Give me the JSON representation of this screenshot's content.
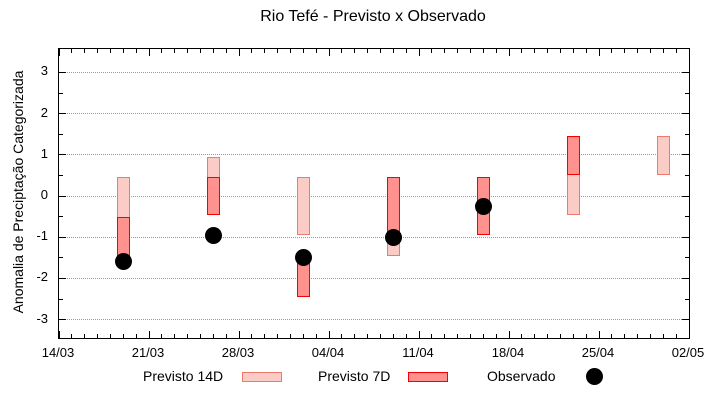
{
  "title": "Rio Tefé - Previsto x Observado",
  "y_axis": {
    "label": "Anomalia de Preciptação Categorizada",
    "ticks": [
      3,
      2,
      1,
      0,
      -1,
      -2,
      -3
    ],
    "range": [
      -3.5,
      3.5
    ]
  },
  "x_axis": {
    "tick_labels": [
      "14/03",
      "21/03",
      "28/03",
      "04/04",
      "11/04",
      "18/04",
      "25/04",
      "02/05"
    ]
  },
  "legend": {
    "items": [
      {
        "label": "Previsto 14D",
        "swatch": "range-bar-light"
      },
      {
        "label": "Previsto 7D",
        "swatch": "range-bar-dark"
      },
      {
        "label": "Observado",
        "swatch": "black-dot"
      }
    ]
  },
  "colors": {
    "forecast14_fill": "#fbcbc6",
    "forecast14_border": "#f0796d",
    "forecast7_fill": "#ff918e",
    "forecast7_border": "#f80000",
    "observed": "#000000",
    "gridline": "#999999",
    "axis": "#000000"
  },
  "chart_data": {
    "type": "bar",
    "subtype": "range-bars-with-scatter-overlay",
    "title": "Rio Tefé - Previsto x Observado",
    "xlabel": "",
    "ylabel": "Anomalia de Preciptação Categorizada",
    "ylim": [
      -3.5,
      3.5
    ],
    "x_tick_labels": [
      "14/03",
      "21/03",
      "28/03",
      "04/04",
      "11/04",
      "18/04",
      "25/04",
      "02/05"
    ],
    "grid": "horizontal-dotted-at-integers",
    "legend_position": "below-plot",
    "series": [
      {
        "name": "Previsto 14D",
        "type": "range-bar",
        "points": [
          {
            "date": "19/03",
            "low": -1.45,
            "high": 0.45
          },
          {
            "date": "26/03",
            "low": -0.45,
            "high": 0.95
          },
          {
            "date": "02/04",
            "low": -0.95,
            "high": 0.45
          },
          {
            "date": "09/04",
            "low": -1.45,
            "high": 0.45
          },
          {
            "date": "23/04",
            "low": -0.45,
            "high": 1.45
          },
          {
            "date": "30/04",
            "low": 0.5,
            "high": 1.45
          }
        ]
      },
      {
        "name": "Previsto 7D",
        "type": "range-bar",
        "points": [
          {
            "date": "19/03",
            "low": -1.45,
            "high": -0.5
          },
          {
            "date": "26/03",
            "low": -0.45,
            "high": 0.45
          },
          {
            "date": "02/04",
            "low": -2.45,
            "high": -1.45
          },
          {
            "date": "09/04",
            "low": -0.95,
            "high": 0.45
          },
          {
            "date": "16/04",
            "low": -0.95,
            "high": 0.45
          },
          {
            "date": "23/04",
            "low": 0.5,
            "high": 1.45
          }
        ]
      },
      {
        "name": "Observado",
        "type": "scatter",
        "points": [
          {
            "date": "19/03",
            "value": -1.6
          },
          {
            "date": "26/03",
            "value": -0.95
          },
          {
            "date": "02/04",
            "value": -1.5
          },
          {
            "date": "09/04",
            "value": -1.0
          },
          {
            "date": "16/04",
            "value": -0.25
          }
        ]
      }
    ]
  }
}
